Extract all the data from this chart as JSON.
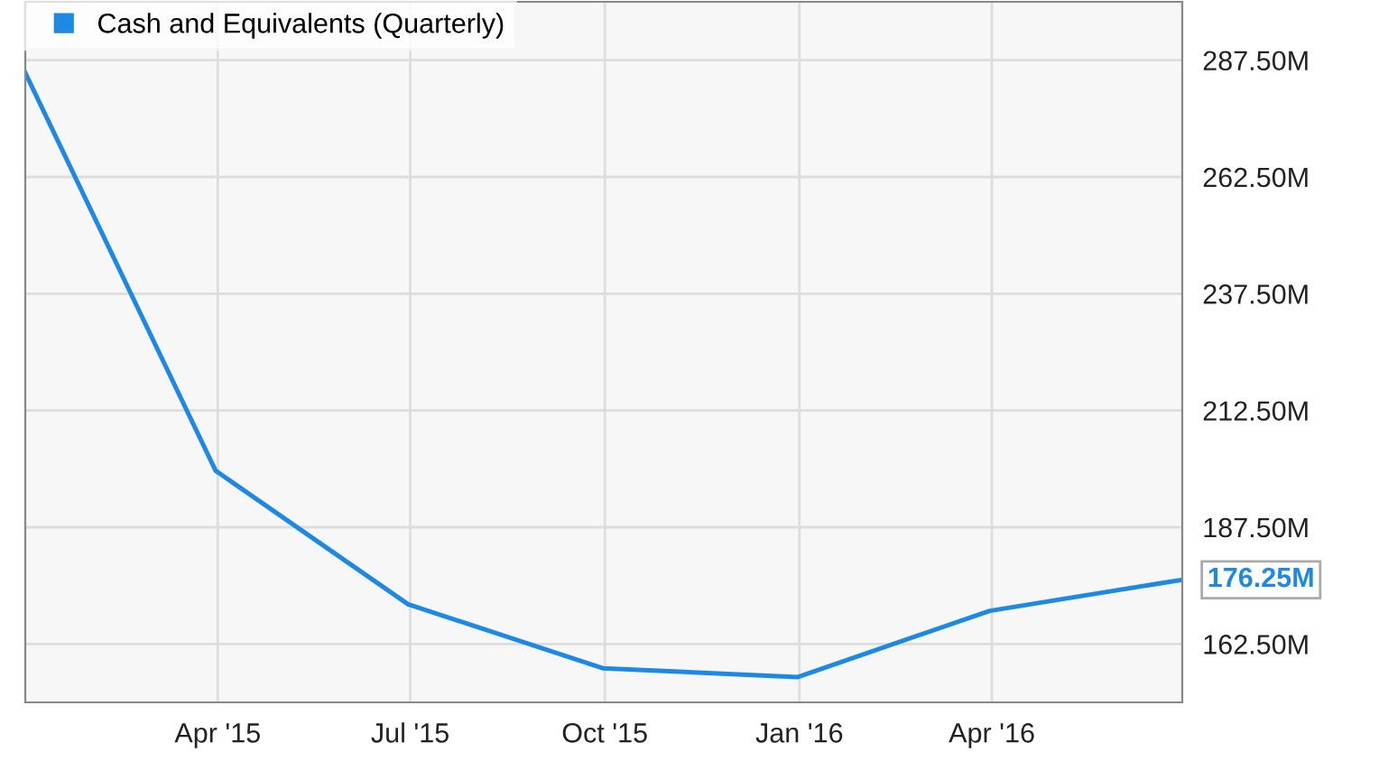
{
  "chart_data": {
    "type": "line",
    "x": [
      "2014-12-31",
      "2015-03-31",
      "2015-06-30",
      "2015-09-30",
      "2015-12-31",
      "2016-03-31",
      "2016-06-30"
    ],
    "series": [
      {
        "name": "Cash and Equivalents (Quarterly)",
        "color": "#1e88e5",
        "values": [
          284.8,
          199.6,
          171.0,
          157.3,
          155.4,
          169.6,
          176.25
        ],
        "value_labels": [
          null,
          null,
          null,
          null,
          null,
          null,
          "176.25M"
        ]
      }
    ],
    "xlim": [
      "2014-12-31",
      "2016-06-30"
    ],
    "xticks": [
      {
        "value": "2015-04-01",
        "label": "Apr '15"
      },
      {
        "value": "2015-07-01",
        "label": "Jul '15"
      },
      {
        "value": "2015-10-01",
        "label": "Oct '15"
      },
      {
        "value": "2016-01-01",
        "label": "Jan '16"
      },
      {
        "value": "2016-04-01",
        "label": "Apr '16"
      }
    ],
    "ylim": [
      150,
      300
    ],
    "yticks": [
      {
        "value": 162.5,
        "label": "162.50M"
      },
      {
        "value": 187.5,
        "label": "187.50M"
      },
      {
        "value": 212.5,
        "label": "212.50M"
      },
      {
        "value": 237.5,
        "label": "237.50M"
      },
      {
        "value": 262.5,
        "label": "262.50M"
      },
      {
        "value": 287.5,
        "label": "287.50M"
      }
    ],
    "grid": true,
    "legend": "top left",
    "marker": "none",
    "line_style": "solid"
  }
}
